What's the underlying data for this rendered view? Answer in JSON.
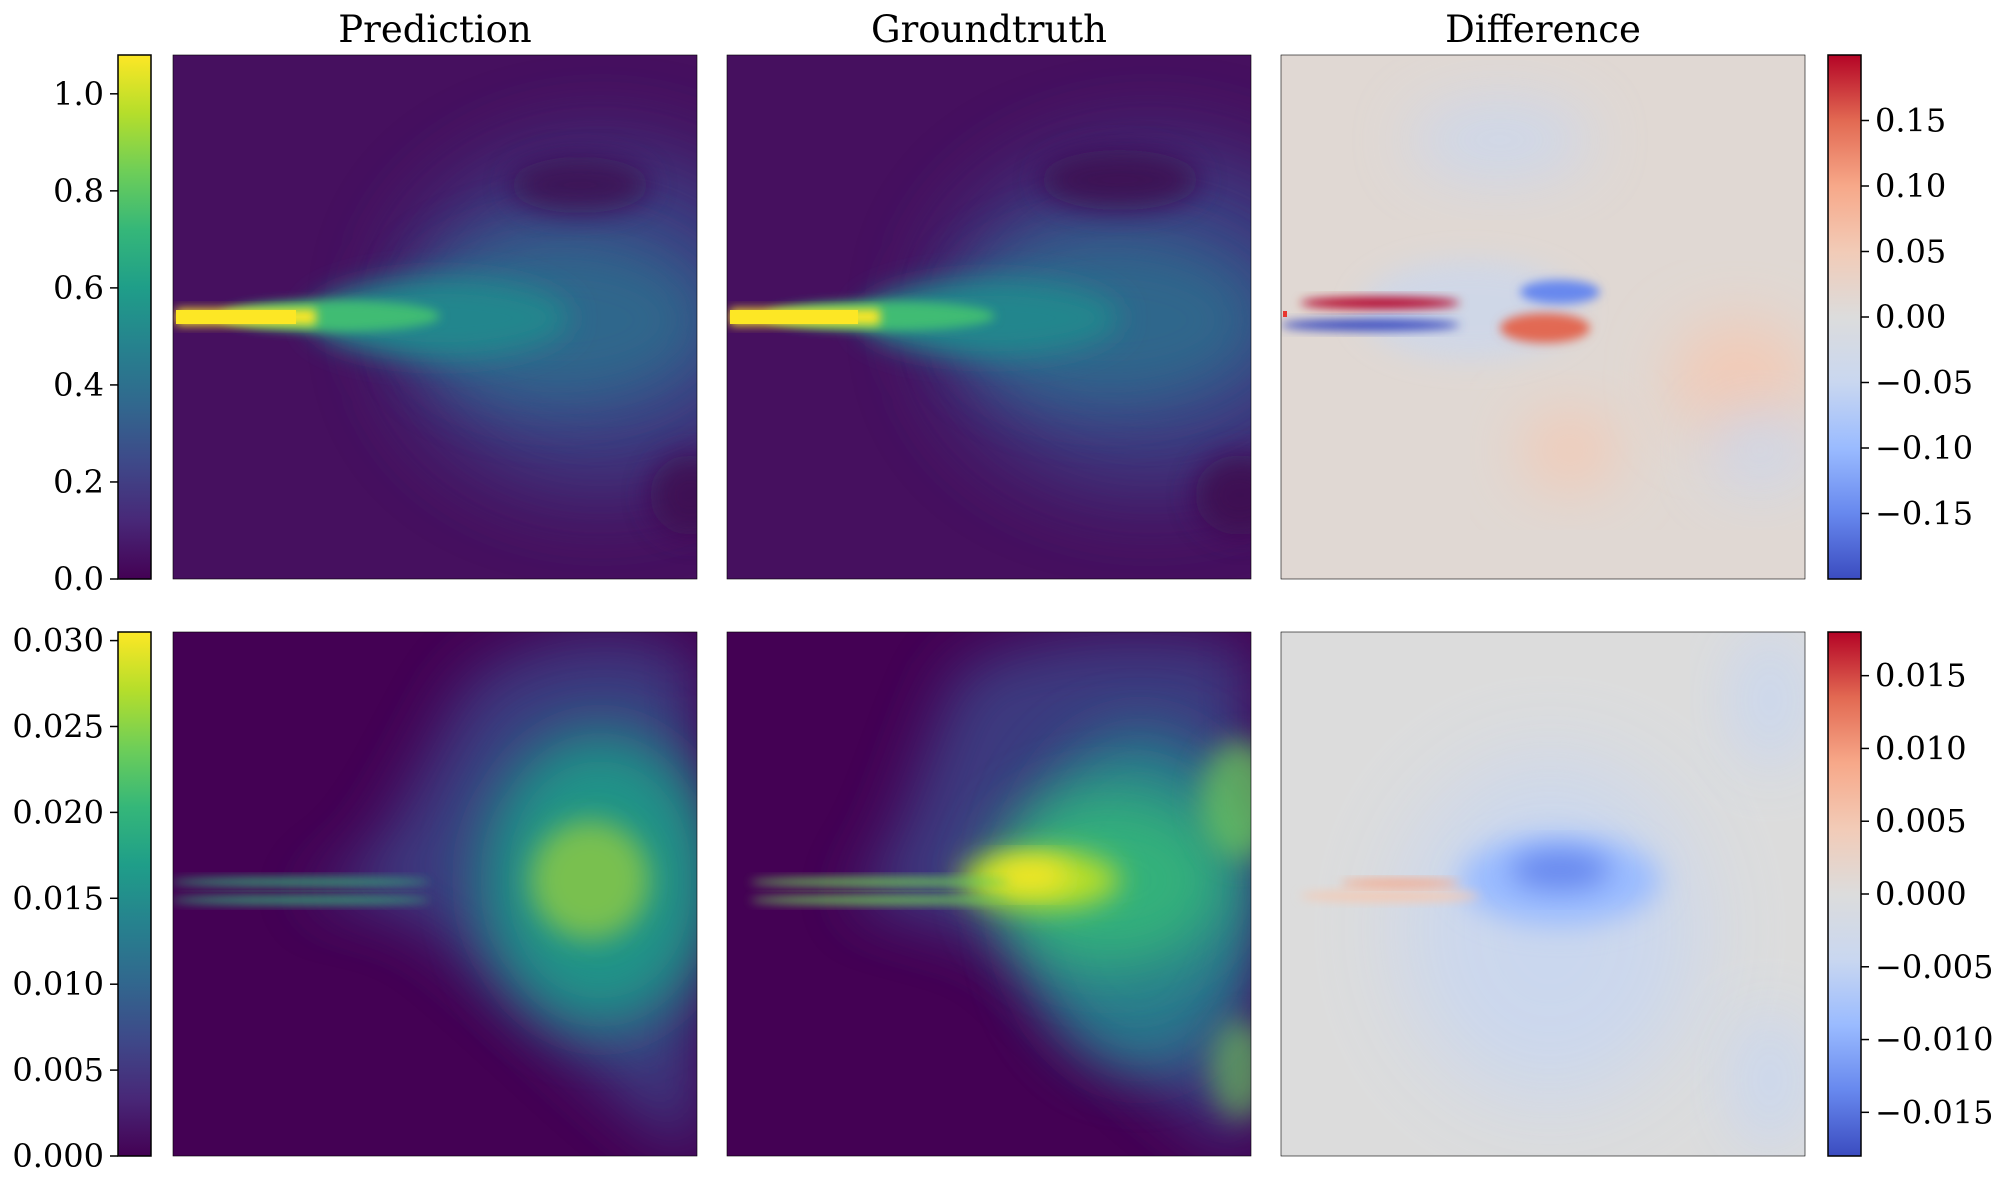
{
  "chart_data": {
    "type": "heatmap",
    "column_titles": [
      "Prediction",
      "Groundtruth",
      "Difference"
    ],
    "rows": [
      {
        "name": "row-1",
        "field_colormap": "viridis",
        "field_colorbar": {
          "vmin": 0.0,
          "vmax": 1.08,
          "ticks": [
            "0.0",
            "0.2",
            "0.4",
            "0.6",
            "0.8",
            "1.0"
          ],
          "tick_values": [
            0.0,
            0.2,
            0.4,
            0.6,
            0.8,
            1.0
          ]
        },
        "diff_colormap": "coolwarm",
        "diff_colorbar": {
          "vmin": -0.2,
          "vmax": 0.2,
          "ticks": [
            "0.15",
            "0.10",
            "0.05",
            "0.00",
            "−0.05",
            "−0.10",
            "−0.15"
          ],
          "tick_values": [
            0.15,
            0.1,
            0.05,
            0.0,
            -0.05,
            -0.1,
            -0.15
          ]
        }
      },
      {
        "name": "row-2",
        "field_colormap": "viridis",
        "field_colorbar": {
          "vmin": 0.0,
          "vmax": 0.0305,
          "ticks": [
            "0.000",
            "0.005",
            "0.010",
            "0.015",
            "0.020",
            "0.025",
            "0.030"
          ],
          "tick_values": [
            0.0,
            0.005,
            0.01,
            0.015,
            0.02,
            0.025,
            0.03
          ]
        },
        "diff_colormap": "coolwarm",
        "diff_colorbar": {
          "vmin": -0.018,
          "vmax": 0.018,
          "ticks": [
            "0.015",
            "0.010",
            "0.005",
            "0.000",
            "−0.005",
            "−0.010",
            "−0.015"
          ],
          "tick_values": [
            0.015,
            0.01,
            0.005,
            0.0,
            -0.005,
            -0.01,
            -0.015
          ]
        }
      }
    ],
    "colors": {
      "viridis": [
        "#440154",
        "#482878",
        "#3e4989",
        "#31688e",
        "#26828e",
        "#1f9e89",
        "#35b779",
        "#6ece58",
        "#b5de2b",
        "#fde725"
      ],
      "coolwarm": [
        "#3b4cc0",
        "#6788ee",
        "#9abbff",
        "#c9d7f0",
        "#dcdcdc",
        "#f2cbb7",
        "#f7a889",
        "#e26952",
        "#b40426"
      ]
    }
  }
}
